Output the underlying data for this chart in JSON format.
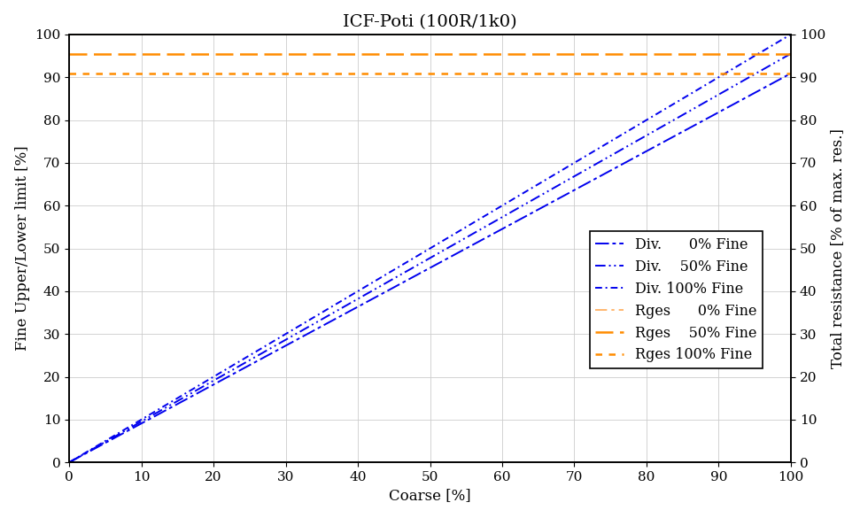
{
  "title": "ICF-Poti (100R/1k0)",
  "xlabel": "Coarse [%]",
  "ylabel_left": "Fine Upper/Lower limit [%]",
  "ylabel_right": "Total resistance [% of max. res.]",
  "xlim": [
    0,
    100
  ],
  "ylim": [
    0,
    100
  ],
  "xticks": [
    0,
    10,
    20,
    30,
    40,
    50,
    60,
    70,
    80,
    90,
    100
  ],
  "yticks": [
    0,
    10,
    20,
    30,
    40,
    50,
    60,
    70,
    80,
    90,
    100
  ],
  "blue_color": "#0000ee",
  "orange_color": "#ff8c00",
  "rges_0_value": 100.0,
  "rges_50_value": 95.5,
  "rges_100_value": 90.9,
  "div_0_slope": 0.909,
  "div_50_slope": 0.955,
  "div_100_slope": 1.0,
  "legend_entries": [
    "Div.      0% Fine",
    "Div.    50% Fine",
    "Div. 100% Fine",
    "Rges      0% Fine",
    "Rges    50% Fine",
    "Rges 100% Fine"
  ],
  "title_fontsize": 14,
  "label_fontsize": 12,
  "tick_fontsize": 11,
  "legend_fontsize": 11.5
}
